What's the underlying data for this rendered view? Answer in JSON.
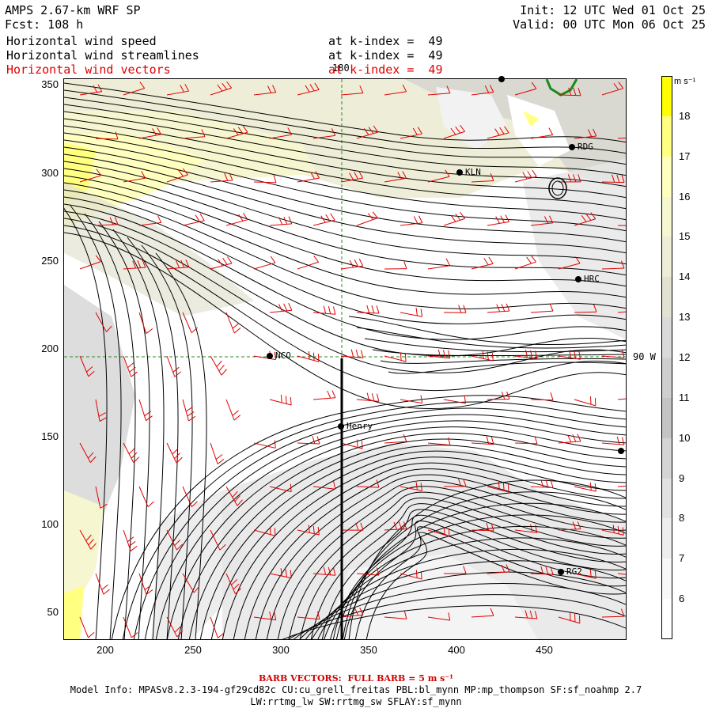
{
  "header": {
    "model": "AMPS 2.67-km WRF SP",
    "forecast": "Fcst: 108 h",
    "init": "Init: 12 UTC Wed 01 Oct 25",
    "valid": "Valid: 00 UTC Mon 06 Oct 25",
    "fields": [
      {
        "name": "Horizontal wind speed",
        "level": "at k-index =  49"
      },
      {
        "name": "Horizontal wind streamlines",
        "level": "at k-index =  49"
      },
      {
        "name": "Horizontal wind vectors",
        "level": "at k-index =  49"
      }
    ]
  },
  "axes": {
    "x_ticks": [
      "200",
      "250",
      "300",
      "350",
      "400",
      "450"
    ],
    "y_ticks": [
      "350",
      "300",
      "250",
      "200",
      "150",
      "100",
      "50"
    ]
  },
  "grid_labels": {
    "meridian": "180",
    "parallel": "90 W"
  },
  "stations": [
    {
      "label": "KLN"
    },
    {
      "label": "RDG"
    },
    {
      "label": "HRC"
    },
    {
      "label": "NCO"
    },
    {
      "label": "Henry"
    },
    {
      "label": "RG2"
    },
    {
      "label": ""
    },
    {
      "label": ""
    }
  ],
  "colorbar": {
    "units": "m s⁻¹",
    "levels": [
      "18",
      "17",
      "16",
      "15",
      "14",
      "13",
      "12",
      "11",
      "10",
      "9",
      "8",
      "7",
      "6"
    ],
    "colors": [
      "#ffff00",
      "#ffff80",
      "#ffffc0",
      "#f6f6d0",
      "#eeeed8",
      "#e2e2d2",
      "#dadada",
      "#cfcfcf",
      "#c4c4c4",
      "#d4d4d4",
      "#e2e2e2",
      "#eeeeee",
      "#f8f8f8",
      "#ffffff"
    ]
  },
  "footer": {
    "barb_note": "BARB VECTORS:  FULL BARB = 5 m s⁻¹",
    "model_info_1": "Model Info: MPASv8.2.3-194-gf29cd82c CU:cu_grell_freitas PBL:bl_mynn MP:mp_thompson SF:sf_noahmp 2.7",
    "model_info_2": "LW:rrtmg_lw SW:rrtmg_sw SFLAY:sf_mynn"
  }
}
